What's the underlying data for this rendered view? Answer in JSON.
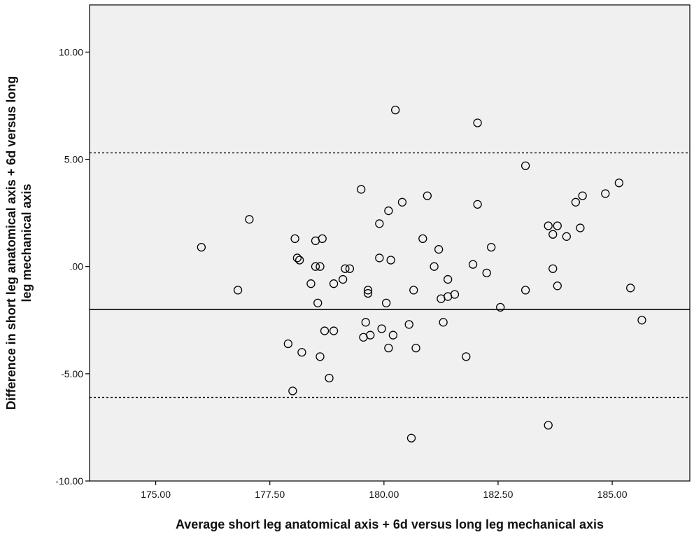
{
  "chart_data": {
    "type": "scatter",
    "title": "",
    "xlabel": "Average short leg anatomical axis + 6d versus long leg mechanical axis",
    "ylabel_lines": [
      "Difference in short leg anatomical axis + 6d versus long",
      "leg mechanical axis"
    ],
    "xlim": [
      173.55,
      186.7
    ],
    "ylim": [
      -10,
      12.2
    ],
    "x_ticks": [
      175,
      177.5,
      180,
      182.5,
      185
    ],
    "x_tick_labels": [
      "175.00",
      "177.50",
      "180.00",
      "182.50",
      "185.00"
    ],
    "y_ticks": [
      -10,
      -5,
      0,
      5,
      10
    ],
    "y_tick_labels": [
      "-10.00",
      "-5.00",
      ".00",
      "5.00",
      "10.00"
    ],
    "grid": false,
    "plot_background": "#f0f0f0",
    "reference_lines": [
      {
        "name": "upper limit of agreement",
        "y": 5.3,
        "style": "dashed"
      },
      {
        "name": "mean difference",
        "y": -2.0,
        "style": "solid"
      },
      {
        "name": "lower limit of agreement",
        "y": -6.1,
        "style": "dashed"
      }
    ],
    "series": [
      {
        "marker": "open-circle",
        "color": "#000000",
        "points": [
          {
            "x": 176.0,
            "y": 0.9
          },
          {
            "x": 176.8,
            "y": -1.1
          },
          {
            "x": 177.05,
            "y": 2.2
          },
          {
            "x": 177.9,
            "y": -3.6
          },
          {
            "x": 178.0,
            "y": -5.8
          },
          {
            "x": 178.05,
            "y": 1.3
          },
          {
            "x": 178.1,
            "y": 0.4
          },
          {
            "x": 178.15,
            "y": 0.3
          },
          {
            "x": 178.2,
            "y": -4.0
          },
          {
            "x": 178.4,
            "y": -0.8
          },
          {
            "x": 178.5,
            "y": 1.2
          },
          {
            "x": 178.5,
            "y": 0.0
          },
          {
            "x": 178.55,
            "y": -1.7
          },
          {
            "x": 178.6,
            "y": 0.0
          },
          {
            "x": 178.6,
            "y": -4.2
          },
          {
            "x": 178.65,
            "y": 1.3
          },
          {
            "x": 178.7,
            "y": -3.0
          },
          {
            "x": 178.8,
            "y": -5.2
          },
          {
            "x": 178.9,
            "y": -0.8
          },
          {
            "x": 178.9,
            "y": -3.0
          },
          {
            "x": 179.1,
            "y": -0.6
          },
          {
            "x": 179.15,
            "y": -0.1
          },
          {
            "x": 179.25,
            "y": -0.1
          },
          {
            "x": 179.5,
            "y": 3.6
          },
          {
            "x": 179.55,
            "y": -3.3
          },
          {
            "x": 179.6,
            "y": -2.6
          },
          {
            "x": 179.65,
            "y": -1.1
          },
          {
            "x": 179.65,
            "y": -1.25
          },
          {
            "x": 179.7,
            "y": -3.2
          },
          {
            "x": 179.9,
            "y": 2.0
          },
          {
            "x": 179.9,
            "y": 0.4
          },
          {
            "x": 179.95,
            "y": -2.9
          },
          {
            "x": 180.05,
            "y": -1.7
          },
          {
            "x": 180.1,
            "y": 2.6
          },
          {
            "x": 180.1,
            "y": -3.8
          },
          {
            "x": 180.15,
            "y": 0.3
          },
          {
            "x": 180.2,
            "y": -3.2
          },
          {
            "x": 180.25,
            "y": 7.3
          },
          {
            "x": 180.4,
            "y": 3.0
          },
          {
            "x": 180.55,
            "y": -2.7
          },
          {
            "x": 180.6,
            "y": -8.0
          },
          {
            "x": 180.65,
            "y": -1.1
          },
          {
            "x": 180.7,
            "y": -3.8
          },
          {
            "x": 180.85,
            "y": 1.3
          },
          {
            "x": 180.95,
            "y": 3.3
          },
          {
            "x": 181.1,
            "y": 0.0
          },
          {
            "x": 181.2,
            "y": 0.8
          },
          {
            "x": 181.25,
            "y": -1.5
          },
          {
            "x": 181.3,
            "y": -2.6
          },
          {
            "x": 181.4,
            "y": -0.6
          },
          {
            "x": 181.4,
            "y": -1.4
          },
          {
            "x": 181.55,
            "y": -1.3
          },
          {
            "x": 181.8,
            "y": -4.2
          },
          {
            "x": 181.95,
            "y": 0.1
          },
          {
            "x": 182.05,
            "y": 6.7
          },
          {
            "x": 182.05,
            "y": 2.9
          },
          {
            "x": 182.25,
            "y": -0.3
          },
          {
            "x": 182.35,
            "y": 0.9
          },
          {
            "x": 182.55,
            "y": -1.9
          },
          {
            "x": 183.1,
            "y": 4.7
          },
          {
            "x": 183.1,
            "y": -1.1
          },
          {
            "x": 183.6,
            "y": 1.9
          },
          {
            "x": 183.6,
            "y": -7.4
          },
          {
            "x": 183.7,
            "y": 1.5
          },
          {
            "x": 183.7,
            "y": -0.1
          },
          {
            "x": 183.8,
            "y": 1.9
          },
          {
            "x": 183.8,
            "y": -0.9
          },
          {
            "x": 184.0,
            "y": 1.4
          },
          {
            "x": 184.2,
            "y": 3.0
          },
          {
            "x": 184.3,
            "y": 1.8
          },
          {
            "x": 184.35,
            "y": 3.3
          },
          {
            "x": 184.85,
            "y": 3.4
          },
          {
            "x": 185.15,
            "y": 3.9
          },
          {
            "x": 185.4,
            "y": -1.0
          },
          {
            "x": 185.65,
            "y": -2.5
          }
        ]
      }
    ]
  }
}
